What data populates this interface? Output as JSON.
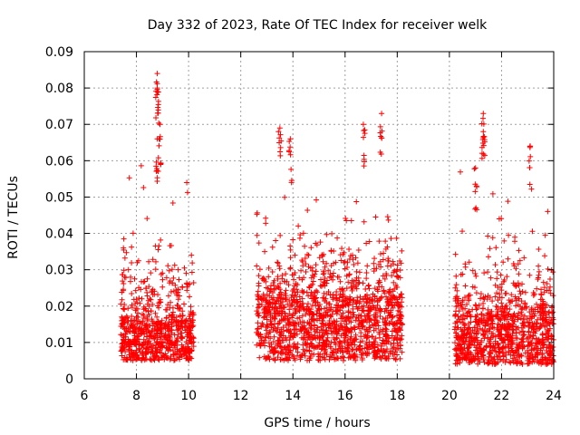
{
  "chart_data": {
    "type": "scatter",
    "title": "Day 332 of 2023, Rate Of TEC Index for receiver welk",
    "xlabel": "GPS time / hours",
    "ylabel": "ROTI / TECUs",
    "xlim": [
      6,
      24
    ],
    "ylim": [
      0,
      0.09
    ],
    "x_ticks": [
      6,
      8,
      10,
      12,
      14,
      16,
      18,
      20,
      22,
      24
    ],
    "y_ticks": [
      0,
      0.01,
      0.02,
      0.03,
      0.04,
      0.05,
      0.06,
      0.07,
      0.08,
      0.09
    ],
    "grid": true,
    "marker": "+",
    "color": "#ff0000",
    "clusters": [
      {
        "x_range": [
          7.4,
          10.2
        ],
        "base": [
          0.005,
          0.016
        ],
        "max": 0.084
      },
      {
        "x_range": [
          12.6,
          18.2
        ],
        "base": [
          0.005,
          0.022
        ],
        "max": 0.073
      },
      {
        "x_range": [
          20.2,
          24.0
        ],
        "base": [
          0.004,
          0.017
        ],
        "max": 0.073
      }
    ],
    "peaks": [
      {
        "x": 8.8,
        "y": 0.084
      },
      {
        "x": 8.8,
        "y": 0.08
      },
      {
        "x": 8.9,
        "y": 0.07
      },
      {
        "x": 8.8,
        "y": 0.066
      },
      {
        "x": 13.5,
        "y": 0.069
      },
      {
        "x": 13.9,
        "y": 0.066
      },
      {
        "x": 16.7,
        "y": 0.07
      },
      {
        "x": 17.4,
        "y": 0.073
      },
      {
        "x": 21.3,
        "y": 0.073
      },
      {
        "x": 21.3,
        "y": 0.068
      },
      {
        "x": 21.0,
        "y": 0.058
      },
      {
        "x": 23.1,
        "y": 0.064
      },
      {
        "x": 7.5,
        "y": 0.036
      },
      {
        "x": 9.6,
        "y": 0.03
      }
    ]
  }
}
